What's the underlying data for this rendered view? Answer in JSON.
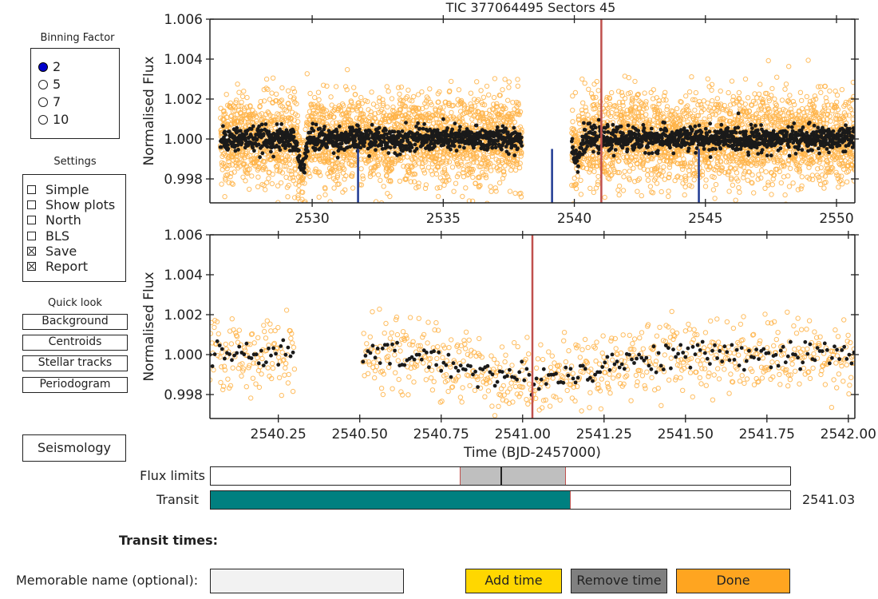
{
  "binning": {
    "title": "Binning Factor",
    "options": [
      "2",
      "5",
      "7",
      "10"
    ],
    "selected": "2"
  },
  "settings": {
    "title": "Settings",
    "items": [
      {
        "label": "Simple",
        "checked": false
      },
      {
        "label": "Show plots",
        "checked": false
      },
      {
        "label": "North",
        "checked": false
      },
      {
        "label": "BLS",
        "checked": false
      },
      {
        "label": "Save",
        "checked": true
      },
      {
        "label": "Report",
        "checked": true
      }
    ]
  },
  "quick_look": {
    "title": "Quick look",
    "buttons": [
      "Background",
      "Centroids",
      "Stellar tracks",
      "Periodogram"
    ]
  },
  "seismology_label": "Seismology",
  "sliders": {
    "flux_limits_label": "Flux limits",
    "transit_label": "Transit",
    "transit_value": "2541.03",
    "transit_fraction": 0.62,
    "flux_low_fraction": 0.43,
    "flux_high_fraction": 0.61,
    "flux_mid_fraction": 0.5
  },
  "transit_times_label": "Transit times:",
  "name_field": {
    "label": "Memorable name (optional):",
    "value": ""
  },
  "actions": {
    "add": "Add time",
    "remove": "Remove time",
    "done": "Done"
  },
  "colors": {
    "raw": "#ffb347",
    "binned": "#1a1a1a",
    "transit_line": "#c0504d",
    "gap_line": "#1f3a93",
    "add": "#ffd700",
    "remove": "#808080",
    "done": "#ffa520",
    "transit_fill": "#008080"
  },
  "chart_data": [
    {
      "type": "scatter",
      "title": "TIC 377064495    Sectors 45",
      "xlabel": "",
      "ylabel": "Normalised Flux",
      "xlim": [
        2526.1,
        2550.7
      ],
      "ylim": [
        0.9968,
        1.006
      ],
      "xticks": [
        2530,
        2535,
        2540,
        2545,
        2550
      ],
      "yticks": [
        0.998,
        1.0,
        1.002,
        1.004,
        1.006
      ],
      "segments": [
        [
          2526.5,
          2538.0
        ],
        [
          2539.9,
          2550.7
        ]
      ],
      "scatter_sigma": 0.0011,
      "binned_sigma": 0.0003,
      "marked_transit": 2541.03,
      "gap_markers": [
        2531.75,
        2539.15,
        2544.75
      ],
      "dips": [
        [
          2529.6,
          0.9985
        ],
        [
          2540.1,
          0.999
        ]
      ]
    },
    {
      "type": "scatter",
      "title": "",
      "xlabel": "Time (BJD-2457000)",
      "ylabel": "Normalised Flux",
      "xlim": [
        2540.04,
        2542.02
      ],
      "ylim": [
        0.9968,
        1.006
      ],
      "xticks": [
        2540.25,
        2540.5,
        2540.75,
        2541.0,
        2541.25,
        2541.5,
        2541.75,
        2542.0
      ],
      "xtick_labels": [
        "2540.25",
        "2540.50",
        "2540.75",
        "2541.00",
        "2541.25",
        "2541.50",
        "2541.75",
        "2542.00"
      ],
      "yticks": [
        0.998,
        1.0,
        1.002,
        1.004,
        1.006
      ],
      "segments": [
        [
          2540.04,
          2540.3
        ],
        [
          2540.51,
          2542.02
        ]
      ],
      "scatter_sigma": 0.0009,
      "binned_sigma": 0.00035,
      "marked_transit": 2541.03,
      "transit_depth": 0.0012
    }
  ]
}
